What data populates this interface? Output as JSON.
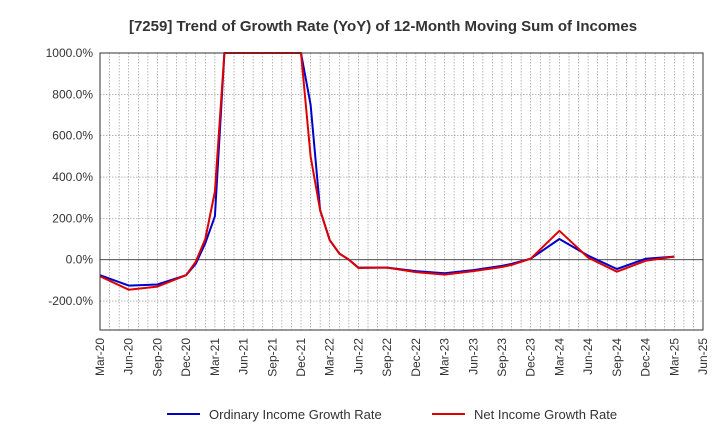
{
  "chart_data": {
    "type": "line",
    "title": "[7259]  Trend of Growth Rate (YoY) of 12-Month Moving Sum of Incomes",
    "xlabel": "",
    "ylabel": "",
    "ylim": [
      -340,
      1000
    ],
    "y_ticks": [
      1000,
      800,
      600,
      400,
      200,
      0,
      -200
    ],
    "y_tick_labels": [
      "1000.0%",
      "800.0%",
      "600.0%",
      "400.0%",
      "200.0%",
      "0.0%",
      "-200.0%"
    ],
    "x_tick_labels": [
      "Mar-20",
      "Jun-20",
      "Sep-20",
      "Dec-20",
      "Mar-21",
      "Jun-21",
      "Sep-21",
      "Dec-21",
      "Mar-22",
      "Jun-22",
      "Sep-22",
      "Dec-22",
      "Mar-23",
      "Jun-23",
      "Sep-23",
      "Dec-23",
      "Mar-24",
      "Jun-24",
      "Sep-24",
      "Dec-24",
      "Mar-25",
      "Jun-25"
    ],
    "x": [
      "Mar-20",
      "Apr-20",
      "May-20",
      "Jun-20",
      "Jul-20",
      "Aug-20",
      "Sep-20",
      "Oct-20",
      "Nov-20",
      "Dec-20",
      "Jan-21",
      "Feb-21",
      "Mar-21",
      "Apr-21",
      "May-21",
      "Jun-21",
      "Jul-21",
      "Aug-21",
      "Sep-21",
      "Oct-21",
      "Nov-21",
      "Dec-21",
      "Jan-22",
      "Feb-22",
      "Mar-22",
      "Apr-22",
      "May-22",
      "Jun-22",
      "Jul-22",
      "Aug-22",
      "Sep-22",
      "Oct-22",
      "Nov-22",
      "Dec-22",
      "Jan-23",
      "Feb-23",
      "Mar-23",
      "Apr-23",
      "May-23",
      "Jun-23",
      "Jul-23",
      "Aug-23",
      "Sep-23",
      "Oct-23",
      "Nov-23",
      "Dec-23",
      "Jan-24",
      "Feb-24",
      "Mar-24",
      "Apr-24",
      "May-24",
      "Jun-24",
      "Jul-24",
      "Aug-24",
      "Sep-24",
      "Oct-24",
      "Nov-24",
      "Dec-24",
      "Jan-25",
      "Feb-25",
      "Mar-25",
      "Apr-25",
      "May-25",
      "Jun-25"
    ],
    "grid": true,
    "legend_position": "bottom",
    "series": [
      {
        "name": "Ordinary Income Growth Rate",
        "color": "#0000cc",
        "values": [
          -75,
          null,
          null,
          -125,
          null,
          null,
          -120,
          null,
          null,
          -75,
          -20,
          80,
          210,
          1000,
          null,
          null,
          null,
          null,
          null,
          null,
          null,
          1000,
          750,
          240,
          95,
          30,
          0,
          -38,
          null,
          null,
          -38,
          null,
          null,
          -55,
          null,
          null,
          -65,
          null,
          null,
          -50,
          null,
          null,
          -30,
          -20,
          null,
          5,
          null,
          null,
          100,
          null,
          null,
          20,
          null,
          null,
          -45,
          null,
          null,
          5,
          null,
          null,
          15,
          null,
          null,
          null
        ]
      },
      {
        "name": "Net Income Growth Rate",
        "color": "#dd0000",
        "values": [
          -80,
          null,
          null,
          -145,
          null,
          null,
          -130,
          null,
          null,
          -75,
          -10,
          100,
          330,
          1000,
          null,
          null,
          null,
          null,
          null,
          null,
          null,
          1000,
          500,
          240,
          95,
          30,
          0,
          -40,
          null,
          null,
          -38,
          null,
          null,
          -60,
          null,
          null,
          -72,
          null,
          null,
          -55,
          null,
          null,
          -35,
          -25,
          null,
          5,
          null,
          null,
          140,
          null,
          null,
          10,
          null,
          null,
          -58,
          null,
          null,
          -5,
          null,
          null,
          15,
          null,
          null,
          null
        ]
      }
    ]
  }
}
